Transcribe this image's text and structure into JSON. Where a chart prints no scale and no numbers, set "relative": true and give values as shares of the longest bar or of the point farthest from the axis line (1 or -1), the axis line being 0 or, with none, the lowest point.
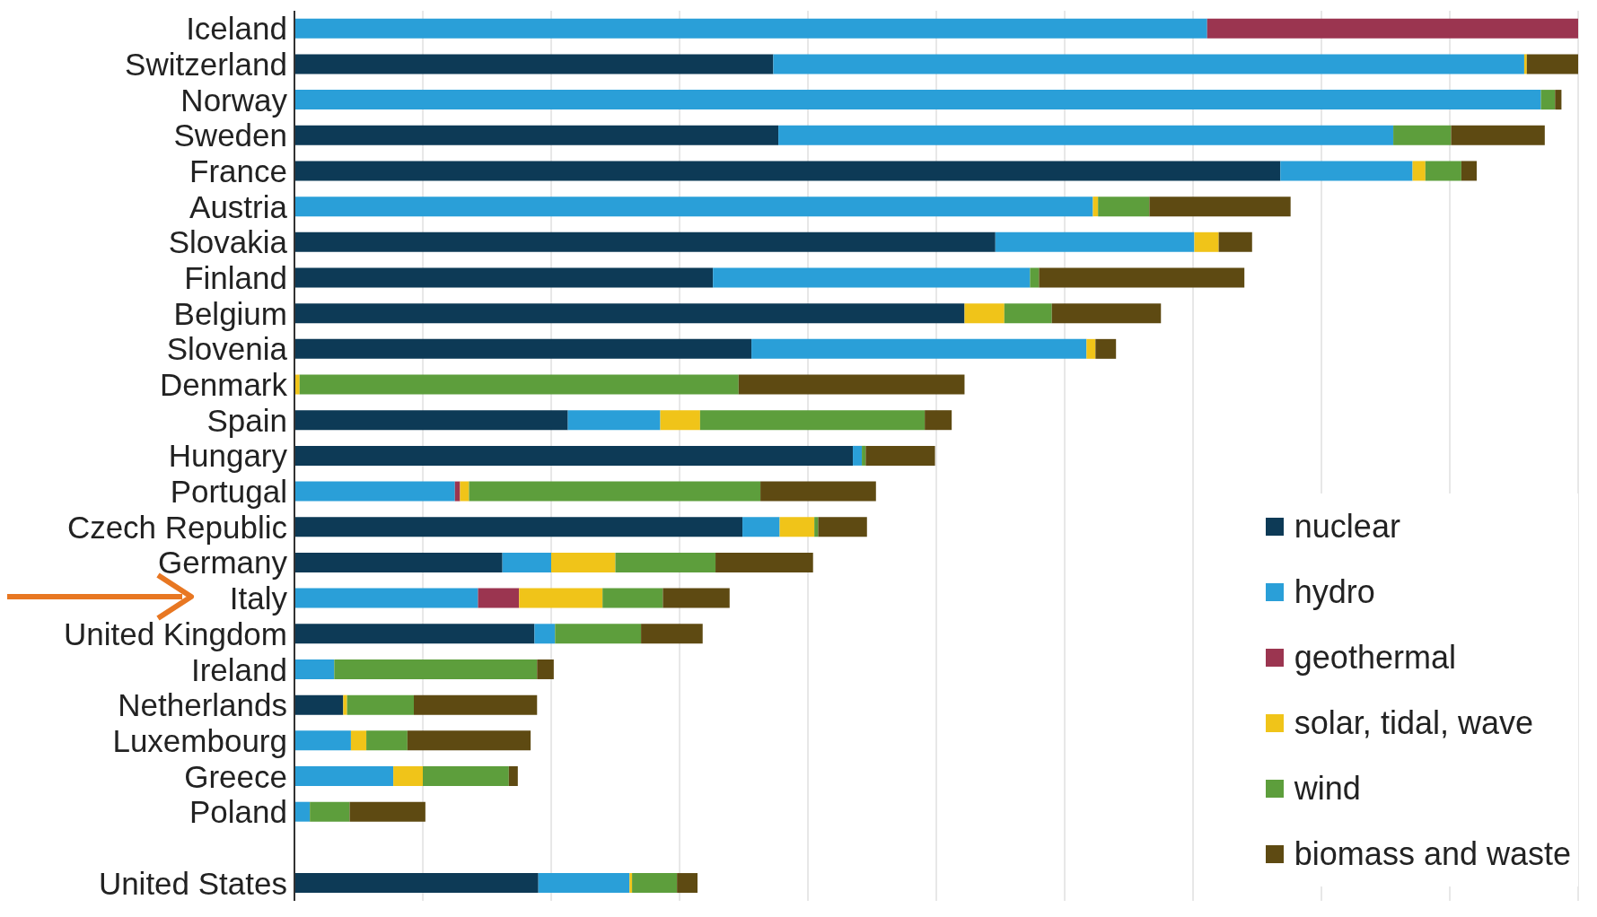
{
  "chart_data": {
    "type": "bar",
    "orientation": "horizontal",
    "stacked": true,
    "relative": true,
    "grid": "x",
    "legend": "bottom right",
    "categories": [
      "Iceland",
      "Switzerland",
      "Norway",
      "Sweden",
      "France",
      "Austria",
      "Slovakia",
      "Finland",
      "Belgium",
      "Slovenia",
      "Denmark",
      "Spain",
      "Hungary",
      "Portugal",
      "Czech Republic",
      "Germany",
      "Italy",
      "United Kingdom",
      "Ireland",
      "Netherlands",
      "Luxembourg",
      "Greece",
      "Poland",
      null,
      "United States"
    ],
    "series": [
      {
        "name": "nuclear",
        "color": "#0d3a56",
        "values": [
          0,
          0.373,
          0,
          0.377,
          0.768,
          0,
          0.546,
          0.326,
          0.522,
          0.356,
          0,
          0.213,
          0.435,
          0,
          0.349,
          0.162,
          0,
          0.187,
          0,
          0.038,
          0,
          0,
          0,
          null,
          0.19
        ]
      },
      {
        "name": "hydro",
        "color": "#2a9fd8",
        "values": [
          0.711,
          0.585,
          0.971,
          0.479,
          0.103,
          0.622,
          0.155,
          0.247,
          0,
          0.261,
          0,
          0.072,
          0.007,
          0.125,
          0.029,
          0.038,
          0.143,
          0.016,
          0.031,
          0,
          0.044,
          0.077,
          0.012,
          null,
          0.071
        ]
      },
      {
        "name": "geothermal",
        "color": "#9b3550",
        "values": [
          0.289,
          0,
          0,
          0,
          0,
          0,
          0,
          0,
          0,
          0,
          0,
          0,
          0,
          0.004,
          0,
          0,
          0.032,
          0,
          0,
          0,
          0,
          0,
          0,
          null,
          0
        ]
      },
      {
        "name": "solar, tidal, wave",
        "color": "#f0c419",
        "values": [
          0,
          0.002,
          0,
          0,
          0.01,
          0.004,
          0.019,
          0,
          0.031,
          0.007,
          0.004,
          0.031,
          0,
          0.007,
          0.027,
          0.05,
          0.065,
          0,
          0,
          0.003,
          0.012,
          0.023,
          0,
          null,
          0.002
        ]
      },
      {
        "name": "wind",
        "color": "#5d9e3c",
        "values": [
          0,
          0,
          0.011,
          0.045,
          0.028,
          0.04,
          0,
          0.007,
          0.037,
          0,
          0.342,
          0.175,
          0.003,
          0.227,
          0.003,
          0.078,
          0.047,
          0.067,
          0.158,
          0.052,
          0.032,
          0.067,
          0.031,
          null,
          0.035
        ]
      },
      {
        "name": "biomass and waste",
        "color": "#5e4a12",
        "values": [
          0,
          0.04,
          0.005,
          0.073,
          0.012,
          0.11,
          0.026,
          0.16,
          0.085,
          0.016,
          0.176,
          0.021,
          0.054,
          0.09,
          0.038,
          0.076,
          0.052,
          0.048,
          0.013,
          0.096,
          0.096,
          0.007,
          0.059,
          null,
          0.016
        ]
      }
    ]
  }
}
